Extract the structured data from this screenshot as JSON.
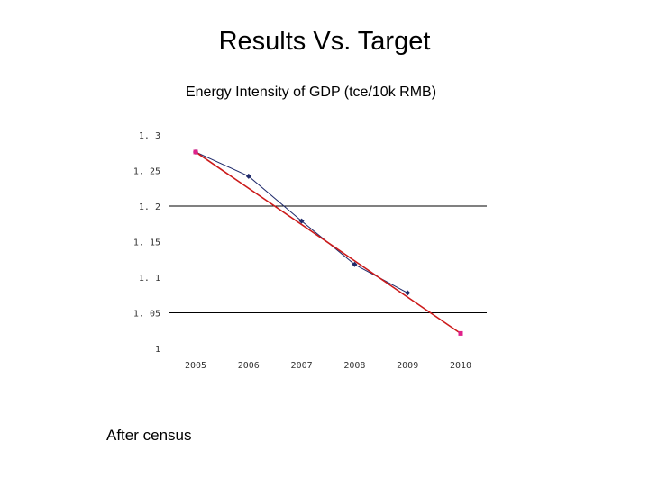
{
  "slide": {
    "title": "Results Vs. Target",
    "note": "After census"
  },
  "chart_data": {
    "type": "line",
    "title": "Energy Intensity of GDP (tce/10k RMB)",
    "xlabel": "",
    "ylabel": "",
    "x": [
      2005,
      2006,
      2007,
      2008,
      2009,
      2010
    ],
    "ylim": [
      1,
      1.3
    ],
    "y_ticks": [
      "1. 3",
      "1. 25",
      "1. 2",
      "1. 15",
      "1. 1",
      "1. 05",
      "1"
    ],
    "x_ticks": [
      "2005",
      "2006",
      "2007",
      "2008",
      "2009",
      "2010"
    ],
    "gridlines_at": [
      1.05,
      1.2
    ],
    "series": [
      {
        "name": "",
        "color": "#1f2a6b",
        "values": [
          1.276,
          1.242,
          1.179,
          1.118,
          1.078,
          null
        ]
      },
      {
        "name": "",
        "color": "#cc1a1a",
        "marker_color": "#e0218a",
        "values": [
          1.276,
          null,
          null,
          null,
          null,
          1.021
        ]
      }
    ]
  }
}
